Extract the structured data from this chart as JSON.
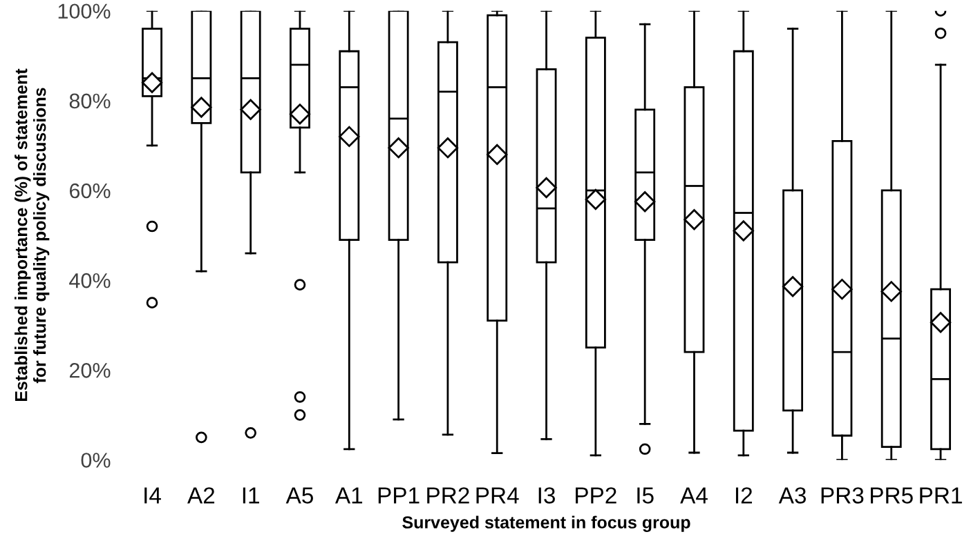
{
  "chart_data": {
    "type": "box",
    "xlabel": "Surveyed statement in focus group",
    "ylabel": "Established importance (%) of statement\nfor future quality policy discussions",
    "categories": [
      "I4",
      "A2",
      "I1",
      "A5",
      "A1",
      "PP1",
      "PR2",
      "PR4",
      "I3",
      "PP2",
      "I5",
      "A4",
      "I2",
      "A3",
      "PR3",
      "PR5",
      "PR1"
    ],
    "ylim": [
      0,
      100
    ],
    "yticks": [
      {
        "value": 0,
        "label": "0%"
      },
      {
        "value": 20,
        "label": "20%"
      },
      {
        "value": 40,
        "label": "40%"
      },
      {
        "value": 60,
        "label": "60%"
      },
      {
        "value": 80,
        "label": "80%"
      },
      {
        "value": 100,
        "label": "100%"
      }
    ],
    "grid": false,
    "marker": "diamond",
    "boxes": [
      {
        "low": 70,
        "q1": 81,
        "median": 85,
        "q3": 96,
        "high": 100,
        "mean": 84,
        "outliers": [
          52,
          35
        ]
      },
      {
        "low": 42,
        "q1": 75,
        "median": 85,
        "q3": 100,
        "high": 100,
        "mean": 78.5,
        "outliers": [
          5
        ]
      },
      {
        "low": 46,
        "q1": 64,
        "median": 85,
        "q3": 100,
        "high": 100,
        "mean": 78,
        "outliers": [
          6
        ]
      },
      {
        "low": 64,
        "q1": 74,
        "median": 88,
        "q3": 96,
        "high": 100,
        "mean": 77,
        "outliers": [
          39,
          14,
          10
        ]
      },
      {
        "low": 2.4,
        "q1": 49,
        "median": 83,
        "q3": 91,
        "high": 100,
        "mean": 72
      },
      {
        "low": 9,
        "q1": 49,
        "median": 76,
        "q3": 100,
        "high": 100,
        "mean": 69.5
      },
      {
        "low": 5.6,
        "q1": 44,
        "median": 82,
        "q3": 93,
        "high": 100,
        "mean": 69.5
      },
      {
        "low": 1.5,
        "q1": 31,
        "median": 83,
        "q3": 99,
        "high": 100,
        "mean": 68
      },
      {
        "low": 4.6,
        "q1": 44,
        "median": 56,
        "q3": 87,
        "high": 100,
        "mean": 60.6
      },
      {
        "low": 1,
        "q1": 25,
        "median": 60,
        "q3": 94,
        "high": 100,
        "mean": 58
      },
      {
        "low": 8,
        "q1": 49,
        "median": 64,
        "q3": 78,
        "high": 97,
        "mean": 57.5,
        "outliers": [
          2.4
        ]
      },
      {
        "low": 1.6,
        "q1": 24,
        "median": 61,
        "q3": 83,
        "high": 100,
        "mean": 53.5
      },
      {
        "low": 1,
        "q1": 6.5,
        "median": 55,
        "q3": 91,
        "high": 100,
        "mean": 51
      },
      {
        "low": 1.6,
        "q1": 11,
        "median": 39,
        "q3": 60,
        "high": 96,
        "mean": 38.6
      },
      {
        "low": 0,
        "q1": 5.4,
        "median": 24,
        "q3": 71,
        "high": 100,
        "mean": 38
      },
      {
        "low": 0,
        "q1": 2.9,
        "median": 27,
        "q3": 60,
        "high": 100,
        "mean": 37.5
      },
      {
        "low": 0,
        "q1": 2.4,
        "median": 18,
        "q3": 38,
        "high": 88,
        "mean": 30.6,
        "outliers": [
          100,
          95
        ]
      }
    ]
  }
}
